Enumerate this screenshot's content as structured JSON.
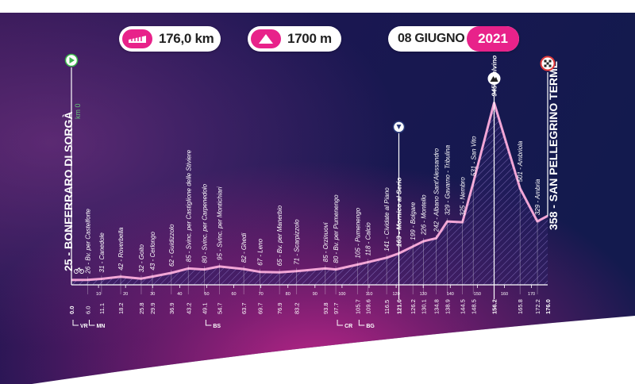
{
  "header": {
    "distance": "176,0 km",
    "elevation": "1700 m",
    "date": "08 GIUGNO",
    "year": "2021"
  },
  "start": {
    "label": "25 - BONFERRARO DI SORGÀ",
    "km_marker": "km 0"
  },
  "finish": {
    "label": "358 - SAN PELLEGRINO TERME"
  },
  "colors": {
    "accent": "#e8228a",
    "background_dark": "#1a1550",
    "profile_line": "#f2a6d6"
  },
  "icons": [
    "ruler-icon",
    "mountain-icon",
    "start-flag-icon",
    "finish-flag-icon",
    "sprint-icon",
    "climb-icon",
    "bike-icon"
  ],
  "chart_data": {
    "type": "area",
    "xlabel": "",
    "ylabel": "",
    "xlim": [
      0,
      176
    ],
    "ylim": [
      0,
      1100
    ],
    "x_ticks": [
      10,
      20,
      30,
      40,
      50,
      60,
      70,
      80,
      90,
      100,
      110,
      120,
      130,
      140,
      150,
      160,
      170
    ],
    "waypoints": [
      {
        "km": "0.0",
        "label": "25 - BONFERRARO DI SORGÀ",
        "bold": true
      },
      {
        "km": "6.0",
        "label": "26 - Bv. per Castelforte"
      },
      {
        "km": "11.1",
        "label": "31 - Canedole"
      },
      {
        "km": "18.2",
        "label": "42 - Roverbella"
      },
      {
        "km": "25.8",
        "label": "32 - Goito"
      },
      {
        "km": "29.9",
        "label": "43 - Cerlongo"
      },
      {
        "km": "36.9",
        "label": "62 - Guidizzolo"
      },
      {
        "km": "43.2",
        "label": "85 - Svinc. per Castiglione delle Stiviere"
      },
      {
        "km": "49.1",
        "label": "80 - Svinc. per Carpenedolo"
      },
      {
        "km": "54.7",
        "label": "95 - Svinc. per Montichiari"
      },
      {
        "km": "63.7",
        "label": "82 - Ghedi"
      },
      {
        "km": "69.7",
        "label": "67 - Leno"
      },
      {
        "km": "76.9",
        "label": "65 - Bv. per Manerbio"
      },
      {
        "km": "83.2",
        "label": "71 - Scarpizzolo"
      },
      {
        "km": "93.8",
        "label": "85 - Orzinuovi"
      },
      {
        "km": "97.7",
        "label": "80 - Bv. per Pumenengo"
      },
      {
        "km": "105.7",
        "label": "105 - Pumenengo"
      },
      {
        "km": "109.6",
        "label": "118 - Calcio"
      },
      {
        "km": "116.5",
        "label": "141 - Cividate al Piano"
      },
      {
        "km": "121.0",
        "label": "163 - Mornico al Serio",
        "bold": true
      },
      {
        "km": "126.2",
        "label": "199 - Bolgare"
      },
      {
        "km": "130.1",
        "label": "226 - Montello"
      },
      {
        "km": "134.8",
        "label": "242 - Albano Sant'Alessandro"
      },
      {
        "km": "138.9",
        "label": "329 - Gavarno - Tribulina"
      },
      {
        "km": "144.5",
        "label": "325 - Nembro"
      },
      {
        "km": "148.5",
        "label": "531 - San Vito"
      },
      {
        "km": "156.2",
        "label": "945 - Selvino",
        "bold": true
      },
      {
        "km": "165.8",
        "label": "501 - Ambriola"
      },
      {
        "km": "172.2",
        "label": "329 - Ambria"
      },
      {
        "km": "176.0",
        "label": "358 - SAN PELLEGRINO TERME",
        "bold": true
      }
    ],
    "profile": [
      [
        0,
        25
      ],
      [
        6,
        26
      ],
      [
        11.1,
        31
      ],
      [
        18.2,
        42
      ],
      [
        25.8,
        32
      ],
      [
        29.9,
        43
      ],
      [
        36.9,
        62
      ],
      [
        43.2,
        85
      ],
      [
        49.1,
        80
      ],
      [
        54.7,
        95
      ],
      [
        63.7,
        82
      ],
      [
        69.7,
        67
      ],
      [
        76.9,
        65
      ],
      [
        83.2,
        71
      ],
      [
        93.8,
        85
      ],
      [
        97.7,
        80
      ],
      [
        105.7,
        105
      ],
      [
        109.6,
        118
      ],
      [
        116.5,
        141
      ],
      [
        121,
        163
      ],
      [
        126.2,
        199
      ],
      [
        130.1,
        226
      ],
      [
        134.8,
        242
      ],
      [
        138.9,
        329
      ],
      [
        144.5,
        325
      ],
      [
        148.5,
        531
      ],
      [
        156.2,
        945
      ],
      [
        165.8,
        501
      ],
      [
        172.2,
        329
      ],
      [
        176,
        358
      ]
    ],
    "transitions": [
      {
        "km": 0,
        "label": "VR"
      },
      {
        "km": 6,
        "label": "MN"
      },
      {
        "km": 49.1,
        "label": "BS"
      },
      {
        "km": 97.7,
        "label": "CR"
      },
      {
        "km": 105.7,
        "label": "BG"
      }
    ]
  }
}
